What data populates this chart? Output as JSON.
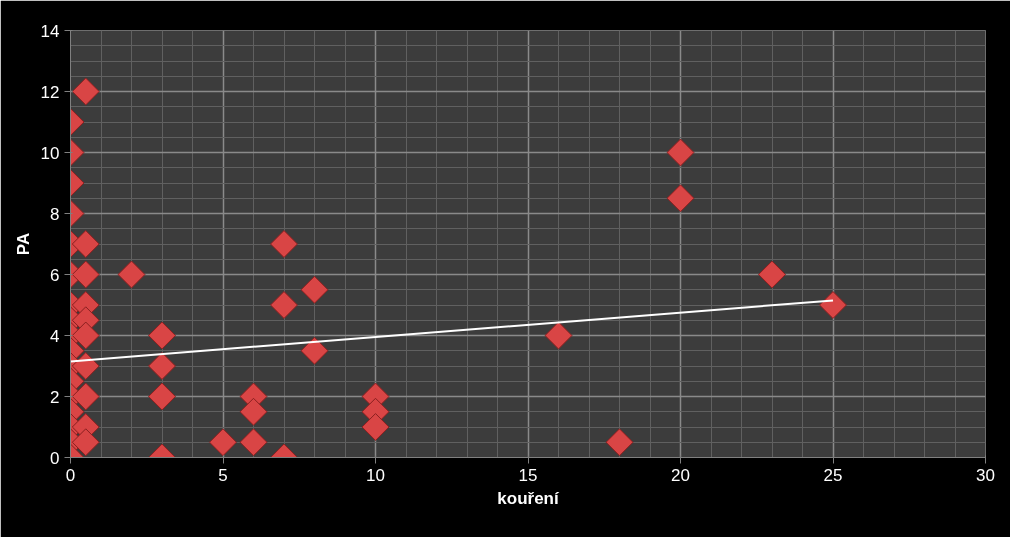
{
  "chart_data": {
    "type": "scatter",
    "xlabel": "kouření",
    "ylabel": "PA",
    "xlim": [
      0,
      30
    ],
    "ylim": [
      0,
      14
    ],
    "xticks": [
      0,
      5,
      10,
      15,
      20,
      25,
      30
    ],
    "yticks": [
      0,
      2,
      4,
      6,
      8,
      10,
      12,
      14
    ],
    "grid": true,
    "series": [
      {
        "color": "#d94545",
        "marker": "diamond",
        "x": [
          0,
          0,
          0,
          0,
          0,
          0,
          0,
          0,
          0,
          0,
          0,
          0,
          0,
          0,
          0,
          0,
          0,
          0.5,
          0.5,
          0.5,
          0.5,
          0.5,
          0.5,
          0.5,
          0.5,
          0.5,
          0.5,
          2,
          3,
          3,
          3,
          3,
          5,
          6,
          6,
          6,
          7,
          7,
          7,
          8,
          8,
          10,
          10,
          10,
          16,
          18,
          20,
          20,
          23,
          25
        ],
        "values": [
          11,
          10,
          9,
          8,
          7,
          6,
          5,
          4.5,
          4,
          3.5,
          3,
          2.5,
          2,
          1.5,
          1,
          0.5,
          0,
          12,
          7,
          6,
          5,
          4.5,
          4,
          3,
          2,
          1,
          0.5,
          6,
          4,
          3,
          2,
          0,
          0.5,
          2,
          1.5,
          0.5,
          7,
          5,
          0,
          5.5,
          3.5,
          2,
          1.5,
          1,
          4,
          0.5,
          10,
          8.5,
          6,
          5
        ]
      },
      {
        "type": "line",
        "color": "#ffffff",
        "marker": "none",
        "x": [
          0,
          25
        ],
        "values": [
          3.15,
          5.15
        ]
      }
    ]
  }
}
